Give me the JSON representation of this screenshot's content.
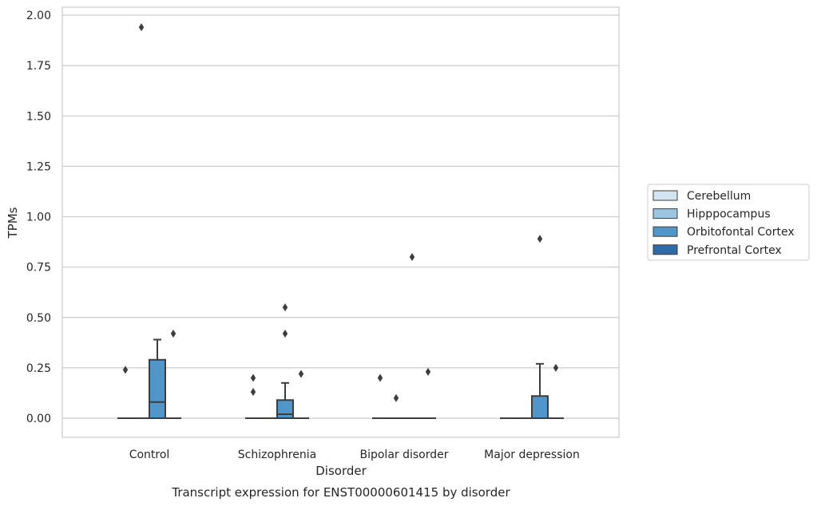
{
  "chart_data": {
    "type": "box",
    "title": "Transcript expression for ENST00000601415 by disorder",
    "xlabel": "Disorder",
    "ylabel": "TPMs",
    "ylim": [
      -0.1,
      2.03
    ],
    "yticks": [
      0.0,
      0.25,
      0.5,
      0.75,
      1.0,
      1.25,
      1.5,
      1.75,
      2.0
    ],
    "ytick_labels": [
      "0.00",
      "0.25",
      "0.50",
      "0.75",
      "1.00",
      "1.25",
      "1.50",
      "1.75",
      "2.00"
    ],
    "grid": true,
    "legend_placement": "right",
    "categories": [
      "Control",
      "Schizophrenia",
      "Bipolar disorder",
      "Major depression"
    ],
    "series": [
      {
        "name": "Cerebellum",
        "color": "#d4e3f1",
        "boxes": [
          {
            "q1": 0,
            "median": 0,
            "q3": 0,
            "whisker_low": 0,
            "whisker_high": 0,
            "outliers": [
              0.24
            ]
          },
          {
            "q1": 0,
            "median": 0,
            "q3": 0,
            "whisker_low": 0,
            "whisker_high": 0,
            "outliers": [
              0.13,
              0.2
            ]
          },
          {
            "q1": 0,
            "median": 0,
            "q3": 0,
            "whisker_low": 0,
            "whisker_high": 0,
            "outliers": [
              0.2
            ]
          },
          {
            "q1": 0,
            "median": 0,
            "q3": 0,
            "whisker_low": 0,
            "whisker_high": 0,
            "outliers": []
          }
        ]
      },
      {
        "name": "Hipppocampus",
        "color": "#9dc5df",
        "boxes": [
          {
            "q1": 0,
            "median": 0,
            "q3": 0,
            "whisker_low": 0,
            "whisker_high": 0,
            "outliers": [
              1.94
            ]
          },
          {
            "q1": 0,
            "median": 0,
            "q3": 0,
            "whisker_low": 0,
            "whisker_high": 0,
            "outliers": []
          },
          {
            "q1": 0,
            "median": 0,
            "q3": 0,
            "whisker_low": 0,
            "whisker_high": 0,
            "outliers": [
              0.1
            ]
          },
          {
            "q1": 0,
            "median": 0,
            "q3": 0,
            "whisker_low": 0,
            "whisker_high": 0,
            "outliers": []
          }
        ]
      },
      {
        "name": "Orbitofontal Cortex",
        "color": "#5096c8",
        "boxes": [
          {
            "q1": 0,
            "median": 0.08,
            "q3": 0.29,
            "whisker_low": 0,
            "whisker_high": 0.39,
            "outliers": []
          },
          {
            "q1": 0,
            "median": 0.02,
            "q3": 0.09,
            "whisker_low": 0,
            "whisker_high": 0.175,
            "outliers": [
              0.42,
              0.55
            ]
          },
          {
            "q1": 0,
            "median": 0,
            "q3": 0,
            "whisker_low": 0,
            "whisker_high": 0,
            "outliers": [
              0.8
            ]
          },
          {
            "q1": 0,
            "median": 0,
            "q3": 0.11,
            "whisker_low": 0,
            "whisker_high": 0.27,
            "outliers": [
              0.89
            ]
          }
        ]
      },
      {
        "name": "Prefrontal Cortex",
        "color": "#2e6ba8",
        "boxes": [
          {
            "q1": 0,
            "median": 0,
            "q3": 0,
            "whisker_low": 0,
            "whisker_high": 0,
            "outliers": [
              0.42
            ]
          },
          {
            "q1": 0,
            "median": 0,
            "q3": 0,
            "whisker_low": 0,
            "whisker_high": 0,
            "outliers": [
              0.22
            ]
          },
          {
            "q1": 0,
            "median": 0,
            "q3": 0,
            "whisker_low": 0,
            "whisker_high": 0,
            "outliers": [
              0.23
            ]
          },
          {
            "q1": 0,
            "median": 0,
            "q3": 0,
            "whisker_low": 0,
            "whisker_high": 0,
            "outliers": [
              0.25
            ]
          }
        ]
      }
    ]
  }
}
